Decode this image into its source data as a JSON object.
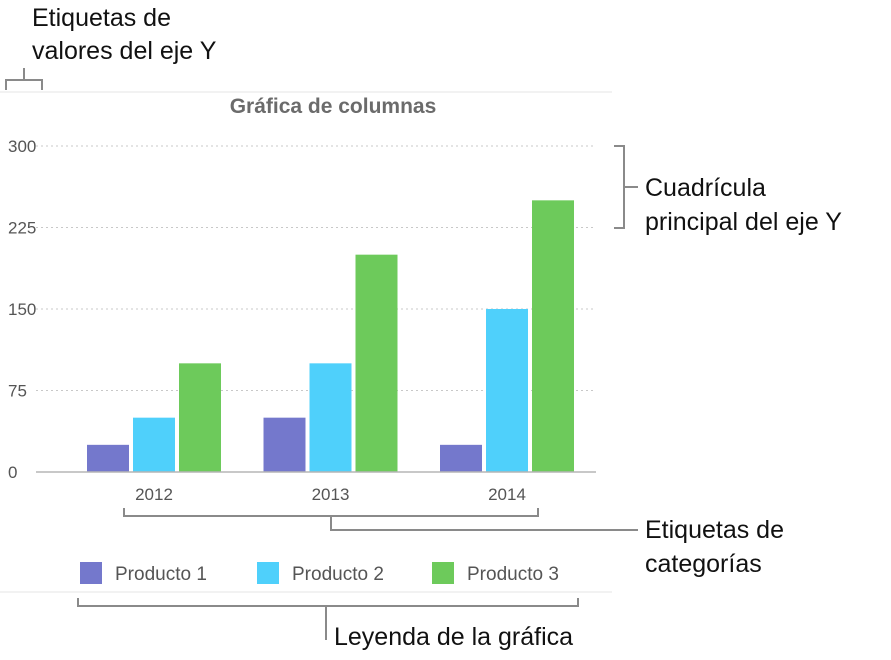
{
  "annotations": {
    "y_value_labels": [
      "Etiquetas de",
      "valores del eje Y"
    ],
    "major_gridlines": [
      "Cuadrícula",
      "principal del eje Y"
    ],
    "category_labels": [
      "Etiquetas de",
      "categorías"
    ],
    "chart_legend": "Leyenda de la gráfica"
  },
  "chart_data": {
    "type": "bar",
    "title": "Gráfica de columnas",
    "xlabel": "",
    "ylabel": "",
    "categories": [
      "2012",
      "2013",
      "2014"
    ],
    "ylim": [
      0,
      300
    ],
    "yticks": [
      0,
      75,
      150,
      225,
      300
    ],
    "grid": true,
    "legend_position": "bottom",
    "series": [
      {
        "name": "Producto 1",
        "color": "#7478cc",
        "values": [
          25,
          50,
          25
        ]
      },
      {
        "name": "Producto 2",
        "color": "#4fd0fb",
        "values": [
          50,
          100,
          150
        ]
      },
      {
        "name": "Producto 3",
        "color": "#6dca5b",
        "values": [
          100,
          200,
          250
        ]
      }
    ]
  }
}
